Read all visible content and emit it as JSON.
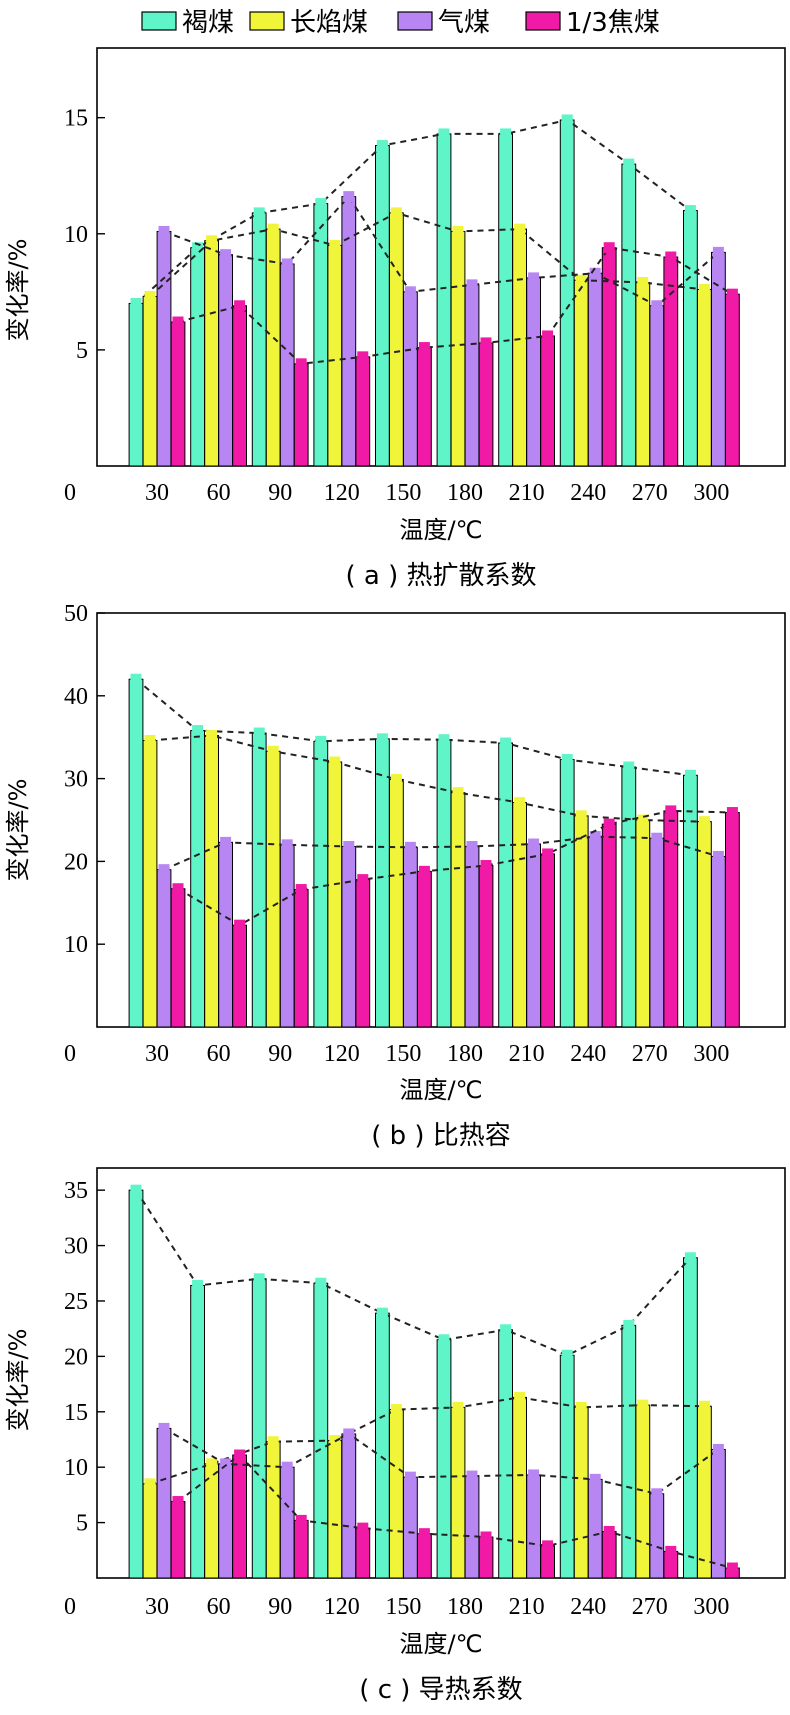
{
  "legend": [
    {
      "label": "褐煤",
      "color": "#5ff5c8"
    },
    {
      "label": "长焰煤",
      "color": "#f0f53a"
    },
    {
      "label": "气煤",
      "color": "#b886f2"
    },
    {
      "label": "1/3焦煤",
      "color": "#f01aa6"
    }
  ],
  "chart_data": [
    {
      "type": "bar",
      "caption": "( a ) 热扩散系数",
      "xlabel": "温度/℃",
      "ylabel": "变化率/%",
      "categories": [
        "30",
        "60",
        "90",
        "120",
        "150",
        "180",
        "210",
        "240",
        "270",
        "300"
      ],
      "ylim": [
        0,
        18
      ],
      "yticks": [
        5,
        10,
        15
      ],
      "origin_label": "0",
      "series": [
        {
          "name": "褐煤",
          "values": [
            7.0,
            9.4,
            10.9,
            11.3,
            13.8,
            14.3,
            14.3,
            14.9,
            13.0,
            11.0
          ]
        },
        {
          "name": "长焰煤",
          "values": [
            7.3,
            9.7,
            10.2,
            9.5,
            10.9,
            10.1,
            10.2,
            8.0,
            7.9,
            7.6
          ]
        },
        {
          "name": "气煤",
          "values": [
            10.1,
            9.1,
            8.7,
            11.6,
            7.5,
            7.8,
            8.1,
            8.3,
            6.9,
            9.2
          ]
        },
        {
          "name": "1/3焦煤",
          "values": [
            6.2,
            6.9,
            4.4,
            4.7,
            5.1,
            5.3,
            5.6,
            9.4,
            9.0,
            7.4
          ]
        }
      ],
      "trend_lines": true,
      "grid": false
    },
    {
      "type": "bar",
      "caption": "( b ) 比热容",
      "xlabel": "温度/℃",
      "ylabel": "变化率/%",
      "categories": [
        "30",
        "60",
        "90",
        "120",
        "150",
        "180",
        "210",
        "240",
        "270",
        "300"
      ],
      "ylim": [
        0,
        50
      ],
      "yticks": [
        10,
        20,
        30,
        40,
        50
      ],
      "origin_label": "0",
      "series": [
        {
          "name": "褐煤",
          "values": [
            42.0,
            35.8,
            35.5,
            34.5,
            34.8,
            34.7,
            34.3,
            32.3,
            31.4,
            30.4
          ]
        },
        {
          "name": "长焰煤",
          "values": [
            34.6,
            35.2,
            33.3,
            32.0,
            29.9,
            28.3,
            27.1,
            25.5,
            25.0,
            24.8
          ]
        },
        {
          "name": "气煤",
          "values": [
            19.0,
            22.3,
            22.0,
            21.8,
            21.7,
            21.8,
            22.1,
            23.0,
            22.8,
            20.6
          ]
        },
        {
          "name": "1/3焦煤",
          "values": [
            16.7,
            12.3,
            16.6,
            17.8,
            18.8,
            19.5,
            20.9,
            24.5,
            26.1,
            25.9
          ]
        }
      ],
      "trend_lines": true,
      "grid": false
    },
    {
      "type": "bar",
      "caption": "( c ) 导热系数",
      "xlabel": "温度/℃",
      "ylabel": "变化率/%",
      "categories": [
        "30",
        "60",
        "90",
        "120",
        "150",
        "180",
        "210",
        "240",
        "270",
        "300"
      ],
      "ylim": [
        0,
        37
      ],
      "yticks": [
        5,
        10,
        15,
        20,
        25,
        30,
        35
      ],
      "origin_label": "0",
      "series": [
        {
          "name": "褐煤",
          "values": [
            35.0,
            26.4,
            27.0,
            26.6,
            23.9,
            21.5,
            22.4,
            20.1,
            22.8,
            28.9
          ]
        },
        {
          "name": "长焰煤",
          "values": [
            8.5,
            10.3,
            12.3,
            12.4,
            15.2,
            15.4,
            16.3,
            15.4,
            15.6,
            15.5
          ]
        },
        {
          "name": "气煤",
          "values": [
            13.5,
            10.3,
            10.0,
            13.0,
            9.1,
            9.2,
            9.3,
            8.9,
            7.6,
            11.6
          ]
        },
        {
          "name": "1/3焦煤",
          "values": [
            6.9,
            11.1,
            5.2,
            4.5,
            4.0,
            3.7,
            2.9,
            4.2,
            2.4,
            0.9
          ]
        }
      ],
      "trend_lines": true,
      "grid": false
    }
  ]
}
